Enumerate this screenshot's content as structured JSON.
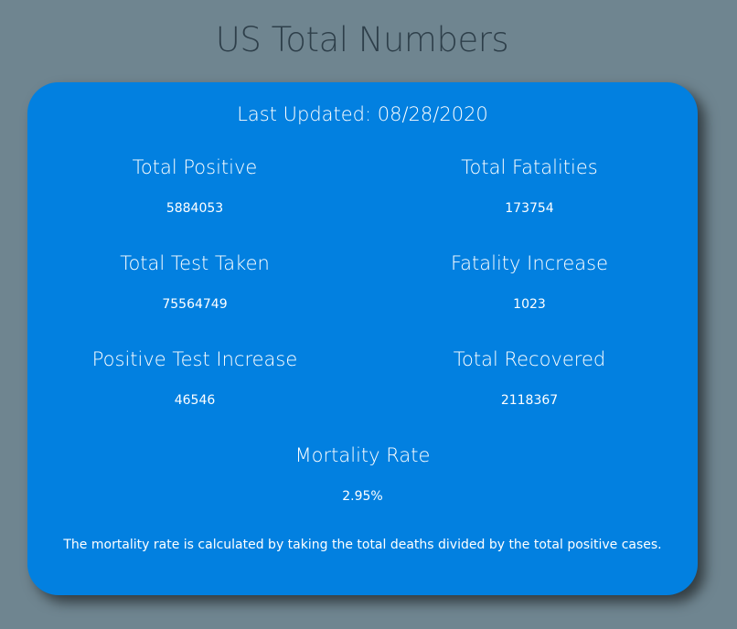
{
  "header": {
    "title": "US Total Numbers"
  },
  "card": {
    "last_updated": "Last Updated: 08/28/2020",
    "stats": {
      "total_positive": {
        "label": "Total Positive",
        "value": "5884053"
      },
      "total_fatalities": {
        "label": "Total Fatalities",
        "value": "173754"
      },
      "total_test_taken": {
        "label": "Total Test Taken",
        "value": "75564749"
      },
      "fatality_increase": {
        "label": "Fatality Increase",
        "value": "1023"
      },
      "positive_test_increase": {
        "label": "Positive Test Increase",
        "value": "46546"
      },
      "total_recovered": {
        "label": "Total Recovered",
        "value": "2118367"
      },
      "mortality_rate": {
        "label": "Mortality Rate",
        "value": "2.95%"
      }
    },
    "note": "The mortality rate is calculated by taking the total deaths divided by the total positive cases."
  },
  "colors": {
    "background": "#6f8590",
    "card": "#0280e0",
    "title": "#2e3f4a",
    "text": "#ffffff"
  }
}
